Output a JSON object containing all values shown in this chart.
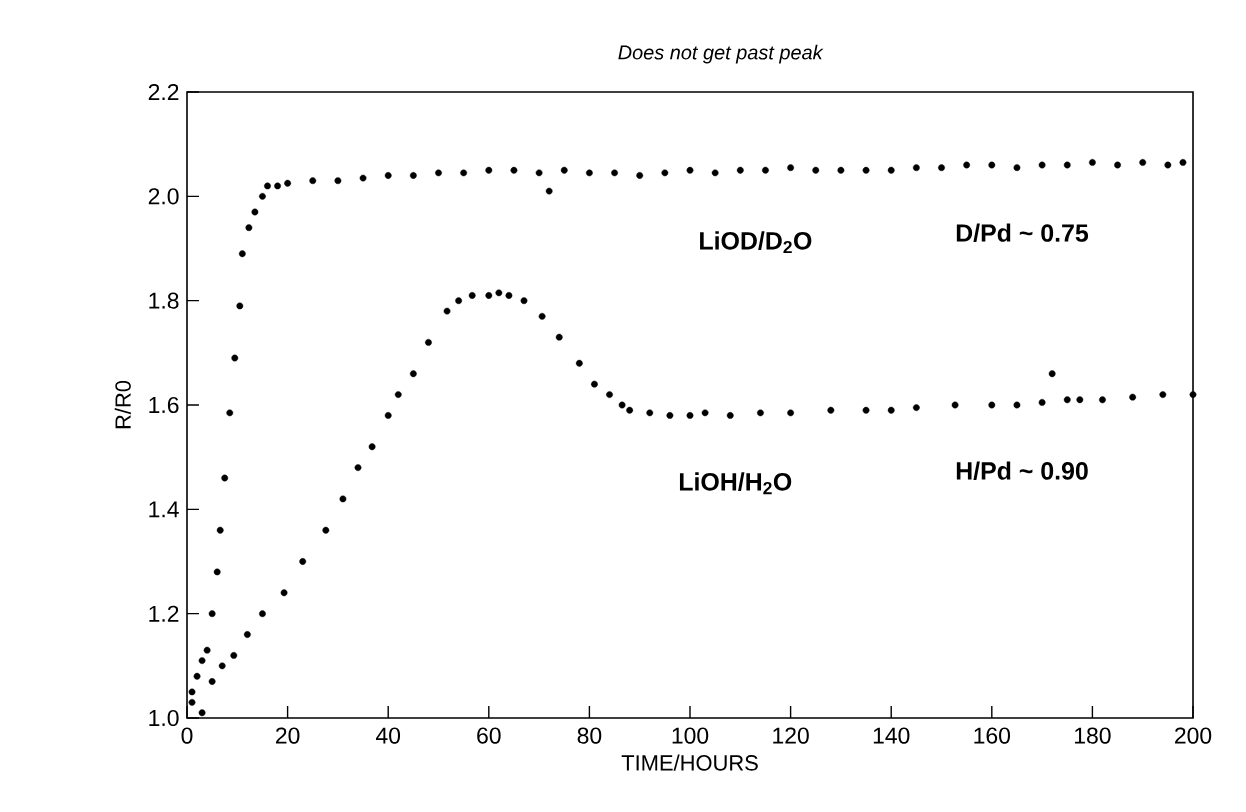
{
  "chart_data": {
    "type": "scatter",
    "xlabel": "TIME/HOURS",
    "ylabel": "R/R0",
    "xlim": [
      0,
      200
    ],
    "ylim": [
      1.0,
      2.2
    ],
    "xticks": [
      0,
      20,
      40,
      60,
      80,
      100,
      120,
      140,
      160,
      180,
      200
    ],
    "yticks": [
      {
        "value": 1.0,
        "label": "1.0"
      },
      {
        "value": 1.2,
        "label": "1.2"
      },
      {
        "value": 1.4,
        "label": "1.4"
      },
      {
        "value": 1.6,
        "label": "1.6"
      },
      {
        "value": 1.8,
        "label": "1.8"
      },
      {
        "value": 2.0,
        "label": "2.0"
      },
      {
        "value": 2.2,
        "label": "2.2"
      }
    ],
    "marker": "circle",
    "grid": false,
    "legend": false,
    "series": [
      {
        "name": "LiOD/D$_{2}$O",
        "color": "#000000",
        "x": [
          1,
          2,
          3,
          4,
          5,
          6,
          6.6,
          7.5,
          8.5,
          9.5,
          10.5,
          11,
          12.3,
          13.5,
          15,
          16,
          18,
          20,
          25,
          30,
          35,
          40,
          45,
          50,
          55,
          60,
          65,
          70,
          72,
          75,
          80,
          85,
          90,
          95,
          100,
          105,
          110,
          115,
          120,
          125,
          130,
          135,
          140,
          145,
          150,
          155,
          160,
          165,
          170,
          175,
          180,
          185,
          190,
          195,
          198
        ],
        "values": [
          1.05,
          1.08,
          1.11,
          1.13,
          1.2,
          1.28,
          1.36,
          1.46,
          1.585,
          1.69,
          1.79,
          1.89,
          1.94,
          1.97,
          2.0,
          2.02,
          2.02,
          2.025,
          2.03,
          2.03,
          2.035,
          2.04,
          2.04,
          2.045,
          2.045,
          2.05,
          2.05,
          2.045,
          2.01,
          2.05,
          2.045,
          2.045,
          2.04,
          2.045,
          2.05,
          2.045,
          2.05,
          2.05,
          2.055,
          2.05,
          2.05,
          2.05,
          2.05,
          2.055,
          2.055,
          2.06,
          2.06,
          2.055,
          2.06,
          2.06,
          2.065,
          2.06,
          2.065,
          2.06,
          2.065
        ]
      },
      {
        "name": "LiOH/H$_{2}$O",
        "color": "#000000",
        "x": [
          1,
          3,
          5,
          7,
          9.3,
          12,
          15,
          19.3,
          23,
          27.6,
          31,
          34,
          36.8,
          40,
          42,
          45,
          48,
          51.7,
          54,
          56.7,
          60,
          62,
          64,
          67,
          70.6,
          74,
          78,
          81,
          84,
          86.5,
          88,
          92,
          96,
          100,
          103,
          108,
          114,
          120,
          128,
          135,
          140,
          145,
          152.7,
          160,
          165,
          170,
          172,
          175,
          177.5,
          182,
          188,
          194,
          200
        ],
        "values": [
          1.03,
          1.01,
          1.07,
          1.1,
          1.12,
          1.16,
          1.2,
          1.24,
          1.3,
          1.36,
          1.42,
          1.48,
          1.52,
          1.58,
          1.62,
          1.66,
          1.72,
          1.78,
          1.8,
          1.81,
          1.81,
          1.815,
          1.81,
          1.8,
          1.77,
          1.73,
          1.68,
          1.64,
          1.62,
          1.6,
          1.59,
          1.585,
          1.58,
          1.58,
          1.585,
          1.58,
          1.585,
          1.585,
          1.59,
          1.59,
          1.59,
          1.595,
          1.6,
          1.6,
          1.6,
          1.605,
          1.66,
          1.61,
          1.61,
          1.61,
          1.615,
          1.62,
          1.62
        ]
      }
    ],
    "annotations": [
      "Does not get past peak",
      "D/Pd ~ 0.75",
      "H/Pd ~ 0.90"
    ]
  }
}
